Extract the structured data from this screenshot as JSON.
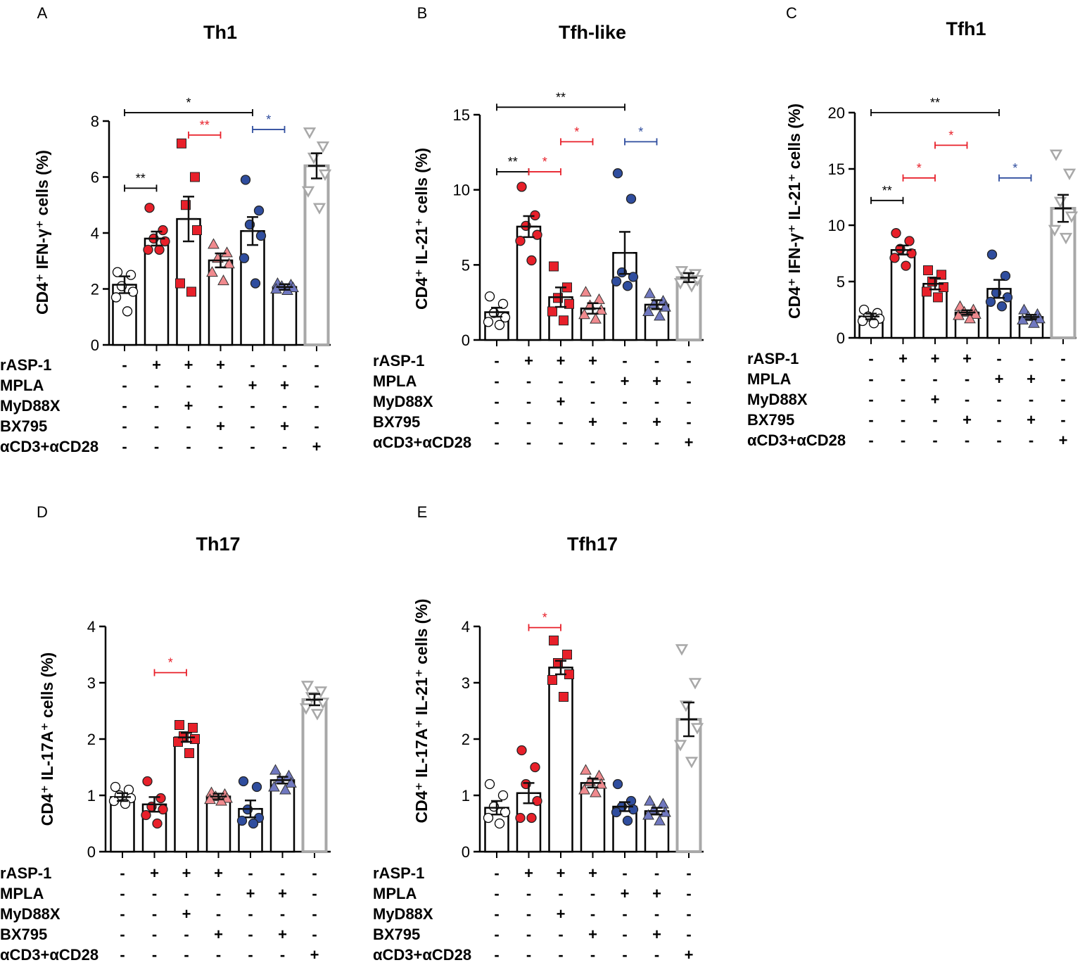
{
  "figure": {
    "colors": {
      "axis": "#000000",
      "ctrl_fill": "#ffffff",
      "asp": "#e8202a",
      "myd": "#e8202a",
      "bx": "#f08a8e",
      "mpla": "#2f4d9e",
      "mplabx": "#7078c0",
      "cd3": "#a8a8a8",
      "sig_black": "#000000",
      "sig_red": "#e8202a",
      "sig_blue": "#2f4d9e"
    },
    "condition_rows": [
      {
        "label": "rASP-1",
        "signs": [
          "-",
          "+",
          "+",
          "+",
          "-",
          "-",
          "-"
        ]
      },
      {
        "label": "MPLA",
        "signs": [
          "-",
          "-",
          "-",
          "-",
          "+",
          "+",
          "-"
        ]
      },
      {
        "label": "MyD88X",
        "signs": [
          "-",
          "-",
          "+",
          "-",
          "-",
          "-",
          "-"
        ]
      },
      {
        "label": "BX795",
        "signs": [
          "-",
          "-",
          "-",
          "+",
          "-",
          "+",
          "-"
        ]
      },
      {
        "label": "αCD3+αCD28",
        "signs": [
          "-",
          "-",
          "-",
          "-",
          "-",
          "-",
          "+"
        ]
      }
    ]
  },
  "chart_data": [
    {
      "panel": "A",
      "type": "bar",
      "title": "Th1",
      "ylabel": "CD4⁺ IFN-γ⁺ cells (%)",
      "ylim": [
        0,
        8
      ],
      "yticks": [
        0,
        2,
        4,
        6,
        8
      ],
      "categories": [
        "control",
        "rASP-1",
        "rASP-1+MyD88X",
        "rASP-1+BX795",
        "MPLA",
        "MPLA+BX795",
        "αCD3+αCD28"
      ],
      "values": [
        2.15,
        3.8,
        4.5,
        3.02,
        4.07,
        2.07,
        6.4
      ],
      "sem": [
        0.3,
        0.25,
        0.8,
        0.25,
        0.5,
        0.1,
        0.45
      ],
      "points": [
        [
          2.6,
          2.5,
          2.1,
          1.9,
          1.7,
          1.2
        ],
        [
          4.9,
          4.1,
          3.8,
          3.7,
          3.4,
          3.4
        ],
        [
          7.2,
          6.0,
          5.0,
          4.1,
          2.2,
          1.9
        ],
        [
          3.6,
          3.3,
          3.1,
          2.9,
          2.6,
          2.3
        ],
        [
          5.9,
          4.8,
          4.3,
          3.9,
          3.1,
          2.2
        ],
        [
          2.2,
          2.15,
          2.1,
          2.05,
          2.0,
          1.95
        ],
        [
          7.6,
          7.1,
          6.7,
          6.1,
          5.5,
          4.9
        ]
      ],
      "significance": [
        {
          "from": 0,
          "to": 4,
          "label": "*",
          "color": "black",
          "y": 8.3
        },
        {
          "from": 2,
          "to": 3,
          "label": "**",
          "color": "red",
          "y": 7.5
        },
        {
          "from": 4,
          "to": 5,
          "label": "*",
          "color": "blue",
          "y": 7.7
        },
        {
          "from": 0,
          "to": 1,
          "label": "**",
          "color": "black",
          "y": 5.6
        }
      ]
    },
    {
      "panel": "B",
      "type": "bar",
      "title": "Tfh-like",
      "ylabel": "CD4⁺ IL-21⁺ cells (%)",
      "ylim": [
        0,
        15
      ],
      "yticks": [
        0,
        5,
        10,
        15
      ],
      "categories": [
        "control",
        "rASP-1",
        "rASP-1+MyD88X",
        "rASP-1+BX795",
        "MPLA",
        "MPLA+BX795",
        "αCD3+αCD28"
      ],
      "values": [
        1.85,
        7.55,
        2.85,
        2.1,
        5.8,
        2.35,
        4.15
      ],
      "sem": [
        0.3,
        0.7,
        0.65,
        0.35,
        1.4,
        0.3,
        0.3
      ],
      "points": [
        [
          2.9,
          2.4,
          1.8,
          1.5,
          1.2,
          1.0
        ],
        [
          10.2,
          8.3,
          7.6,
          7.0,
          6.6,
          5.3
        ],
        [
          4.9,
          3.5,
          2.8,
          2.4,
          1.9,
          1.3
        ],
        [
          3.2,
          2.7,
          2.3,
          2.0,
          1.7,
          1.4
        ],
        [
          11.1,
          9.4,
          4.5,
          4.2,
          3.9,
          3.6
        ],
        [
          3.1,
          2.6,
          2.4,
          2.2,
          1.9,
          1.6
        ],
        [
          4.6,
          4.4,
          4.2,
          4.0,
          3.8,
          3.6
        ]
      ],
      "significance": [
        {
          "from": 0,
          "to": 4,
          "label": "**",
          "color": "black",
          "y": 15.5
        },
        {
          "from": 2,
          "to": 3,
          "label": "*",
          "color": "red",
          "y": 13.2
        },
        {
          "from": 4,
          "to": 5,
          "label": "*",
          "color": "blue",
          "y": 13.2
        },
        {
          "from": 0,
          "to": 1,
          "label": "**",
          "color": "black",
          "y": 11.2
        },
        {
          "from": 1,
          "to": 2,
          "label": "*",
          "color": "red",
          "y": 11.2
        }
      ]
    },
    {
      "panel": "C",
      "type": "bar",
      "title": "Tfh1",
      "ylabel": "CD4⁺ IFN-γ⁺ IL-21⁺ cells (%)",
      "ylim": [
        0,
        20
      ],
      "yticks": [
        0,
        5,
        10,
        15,
        20
      ],
      "categories": [
        "control",
        "rASP-1",
        "rASP-1+MyD88X",
        "rASP-1+BX795",
        "MPLA",
        "MPLA+BX795",
        "αCD3+αCD28"
      ],
      "values": [
        1.9,
        7.8,
        4.8,
        2.25,
        4.35,
        1.85,
        11.5
      ],
      "sem": [
        0.25,
        0.4,
        0.5,
        0.2,
        0.8,
        0.2,
        1.2
      ],
      "points": [
        [
          2.5,
          2.2,
          1.9,
          1.7,
          1.5,
          1.3
        ],
        [
          9.3,
          8.6,
          7.9,
          7.5,
          7.1,
          6.4
        ],
        [
          6.0,
          5.6,
          5.0,
          4.5,
          4.1,
          3.6
        ],
        [
          2.8,
          2.5,
          2.3,
          2.1,
          2.0,
          1.7
        ],
        [
          7.4,
          5.5,
          4.0,
          3.6,
          3.2,
          2.8
        ],
        [
          2.5,
          2.1,
          1.9,
          1.7,
          1.6,
          1.3
        ],
        [
          16.3,
          14.6,
          12.1,
          10.8,
          9.6,
          8.9
        ]
      ],
      "significance": [
        {
          "from": 0,
          "to": 4,
          "label": "**",
          "color": "black",
          "y": 20.0
        },
        {
          "from": 2,
          "to": 3,
          "label": "*",
          "color": "red",
          "y": 17.1
        },
        {
          "from": 0,
          "to": 1,
          "label": "**",
          "color": "black",
          "y": 12.2
        },
        {
          "from": 1,
          "to": 2,
          "label": "*",
          "color": "red",
          "y": 14.2
        },
        {
          "from": 4,
          "to": 5,
          "label": "*",
          "color": "blue",
          "y": 14.2
        }
      ]
    },
    {
      "panel": "D",
      "type": "bar",
      "title": "Th17",
      "ylabel": "CD4⁺ IL-17A⁺ cells (%)",
      "ylim": [
        0,
        4
      ],
      "yticks": [
        0,
        1,
        2,
        3,
        4
      ],
      "categories": [
        "control",
        "rASP-1",
        "rASP-1+MyD88X",
        "rASP-1+BX795",
        "MPLA",
        "MPLA+BX795",
        "αCD3+αCD28"
      ],
      "values": [
        0.97,
        0.84,
        2.03,
        0.98,
        0.76,
        1.27,
        2.7
      ],
      "sem": [
        0.07,
        0.13,
        0.08,
        0.05,
        0.15,
        0.06,
        0.1
      ],
      "points": [
        [
          1.15,
          1.1,
          1.0,
          0.95,
          0.9,
          0.85
        ],
        [
          1.25,
          0.95,
          0.8,
          0.75,
          0.65,
          0.5
        ],
        [
          2.25,
          2.2,
          2.05,
          2.0,
          1.95,
          1.75
        ],
        [
          1.05,
          1.02,
          0.98,
          0.95,
          0.93,
          0.9
        ],
        [
          1.25,
          1.15,
          0.75,
          0.6,
          0.55,
          0.5
        ],
        [
          1.45,
          1.35,
          1.28,
          1.22,
          1.15,
          1.1
        ],
        [
          2.95,
          2.85,
          2.75,
          2.65,
          2.55,
          2.45
        ]
      ],
      "significance": [
        {
          "from": 1,
          "to": 2,
          "label": "*",
          "color": "red",
          "y": 3.18
        }
      ]
    },
    {
      "panel": "E",
      "type": "bar",
      "title": "Tfh17",
      "ylabel": "CD4⁺ IL-17A⁺ IL-21⁺ cells (%)",
      "ylim": [
        0,
        4
      ],
      "yticks": [
        0,
        1,
        2,
        3,
        4
      ],
      "categories": [
        "control",
        "rASP-1",
        "rASP-1+MyD88X",
        "rASP-1+BX795",
        "MPLA",
        "MPLA+BX795",
        "αCD3+αCD28"
      ],
      "values": [
        0.78,
        1.04,
        3.27,
        1.22,
        0.8,
        0.72,
        2.35
      ],
      "sem": [
        0.12,
        0.18,
        0.12,
        0.08,
        0.08,
        0.06,
        0.3
      ],
      "points": [
        [
          1.2,
          1.0,
          0.8,
          0.7,
          0.6,
          0.5
        ],
        [
          1.8,
          1.5,
          1.2,
          0.9,
          0.6,
          0.6
        ],
        [
          3.75,
          3.5,
          3.35,
          3.15,
          3.05,
          2.75
        ],
        [
          1.45,
          1.35,
          1.25,
          1.2,
          1.1,
          1.05
        ],
        [
          1.2,
          0.9,
          0.8,
          0.75,
          0.7,
          0.55
        ],
        [
          0.9,
          0.85,
          0.75,
          0.7,
          0.65,
          0.55
        ],
        [
          3.6,
          3.0,
          2.6,
          2.2,
          1.9,
          1.6
        ]
      ],
      "significance": [
        {
          "from": 1,
          "to": 2,
          "label": "*",
          "color": "red",
          "y": 3.98
        }
      ]
    }
  ]
}
